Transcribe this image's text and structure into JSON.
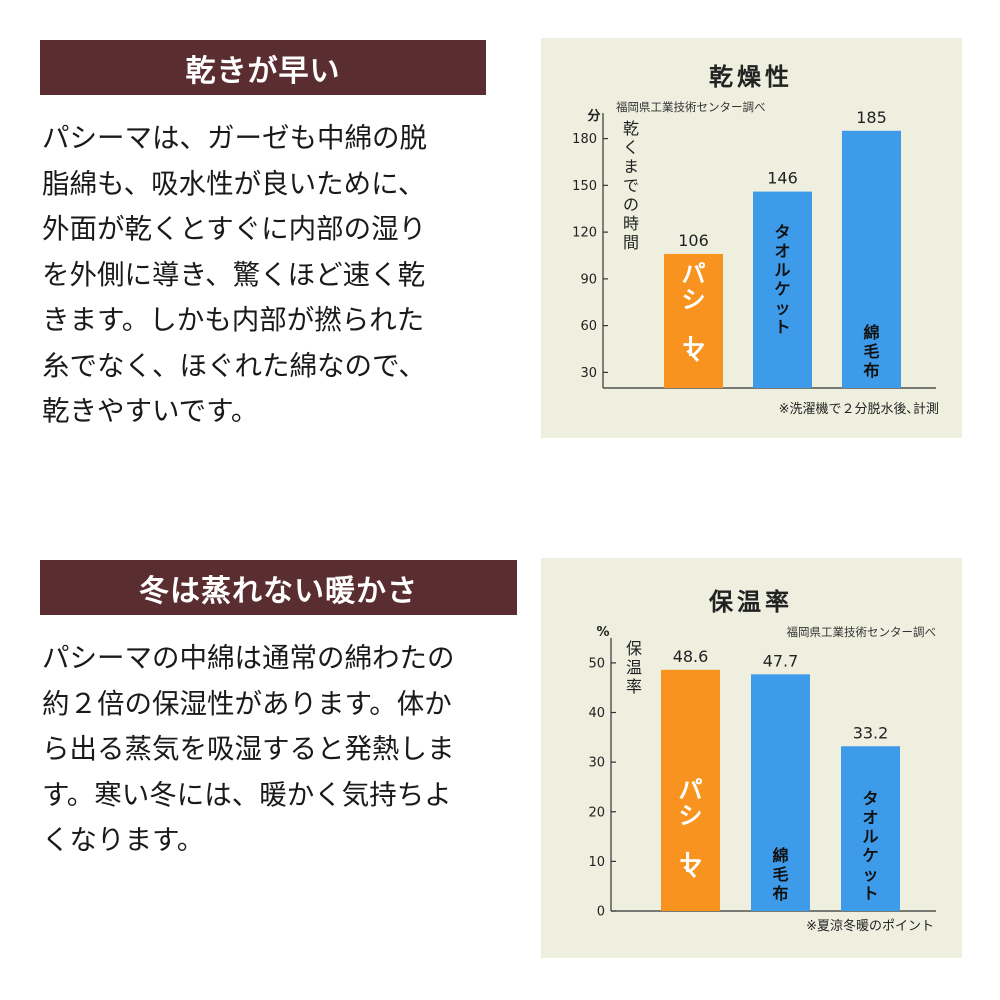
{
  "section1": {
    "heading": "乾きが早い",
    "lines": [
      "パシーマは、ガーゼも中綿の脱",
      "脂綿も、吸水性が良いために、",
      "外面が乾くとすぐに内部の湿り",
      "を外側に導き、驚くほど速く乾",
      "きます。しかも内部が撚られた",
      "糸でなく、ほぐれた綿なので、",
      "乾きやすいです。"
    ]
  },
  "section2": {
    "heading": "冬は蒸れない暖かさ",
    "lines": [
      "パシーマの中綿は通常の綿わたの",
      "約２倍の保湿性があります。体か",
      "ら出る蒸気を吸湿すると発熱しま",
      "す。寒い冬には、暖かく気持ちよ",
      "くなります。"
    ]
  },
  "chart_data": [
    {
      "type": "bar",
      "title": "乾燥性",
      "source": "福岡県工業技術センター調べ",
      "unit": "分",
      "ylabel": "乾くまでの時間",
      "categories": [
        "パシーマ",
        "タオルケット",
        "綿毛布"
      ],
      "values": [
        106,
        146,
        185
      ],
      "value_labels": [
        "106",
        "146",
        "185"
      ],
      "yticks": [
        30,
        60,
        90,
        120,
        150,
        180
      ],
      "ylim": [
        20,
        190
      ],
      "colors": [
        "#f7931e",
        "#3d9be9",
        "#3d9be9"
      ],
      "note": "※洗濯機で２分脱水後､計測",
      "grid": false
    },
    {
      "type": "bar",
      "title": "保温率",
      "source": "福岡県工業技術センター調べ",
      "unit": "%",
      "ylabel": "保温率",
      "categories": [
        "パシーマ",
        "綿毛布",
        "タオルケット"
      ],
      "values": [
        48.6,
        47.7,
        33.2
      ],
      "value_labels": [
        "48.6",
        "47.7",
        "33.2"
      ],
      "yticks": [
        0,
        10,
        20,
        30,
        40,
        50
      ],
      "ylim": [
        0,
        53
      ],
      "colors": [
        "#f7931e",
        "#3d9be9",
        "#3d9be9"
      ],
      "note": "※夏涼冬暖のポイント",
      "grid": false
    }
  ]
}
